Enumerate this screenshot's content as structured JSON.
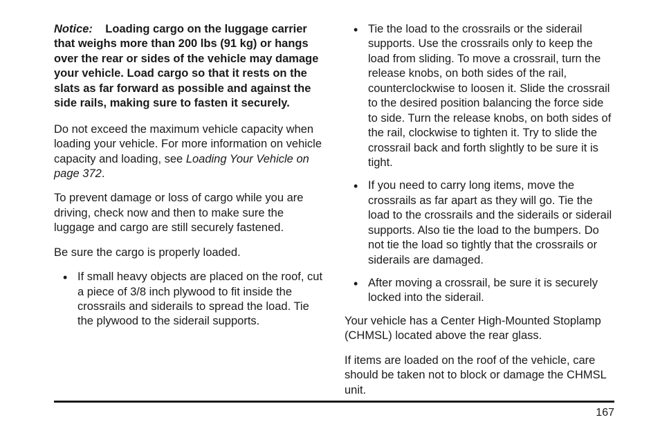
{
  "left": {
    "notice_label": "Notice:",
    "notice_text": "Loading cargo on the luggage carrier that weighs more than 200 lbs (91 kg) or hangs over the rear or sides of the vehicle may damage your vehicle. Load cargo so that it rests on the slats as far forward as possible and against the side rails, making sure to fasten it securely.",
    "p1a": "Do not exceed the maximum vehicle capacity when loading your vehicle. For more information on vehicle capacity and loading, see ",
    "p1_ital": "Loading Your Vehicle on page 372",
    "p1b": ".",
    "p2": "To prevent damage or loss of cargo while you are driving, check now and then to make sure the luggage and cargo are still securely fastened.",
    "p3": "Be sure the cargo is properly loaded.",
    "b1": "If small heavy objects are placed on the roof, cut a piece of 3/8 inch plywood to fit inside the crossrails and siderails to spread the load. Tie the plywood to the siderail supports."
  },
  "right": {
    "b2": "Tie the load to the crossrails or the siderail supports. Use the crossrails only to keep the load from sliding. To move a crossrail, turn the release knobs, on both sides of the rail, counterclockwise to loosen it. Slide the crossrail to the desired position balancing the force side to side. Turn the release knobs, on both sides of the rail, clockwise to tighten it. Try to slide the crossrail back and forth slightly to be sure it is tight.",
    "b3": "If you need to carry long items, move the crossrails as far apart as they will go. Tie the load to the crossrails and the siderails or siderail supports. Also tie the load to the bumpers. Do not tie the load so tightly that the crossrails or siderails are damaged.",
    "b4": "After moving a crossrail, be sure it is securely locked into the siderail.",
    "p4": "Your vehicle has a Center High-Mounted Stoplamp (CHMSL) located above the rear glass.",
    "p5": "If items are loaded on the roof of the vehicle, care should be taken not to block or damage the CHMSL unit."
  },
  "page_number": "167"
}
